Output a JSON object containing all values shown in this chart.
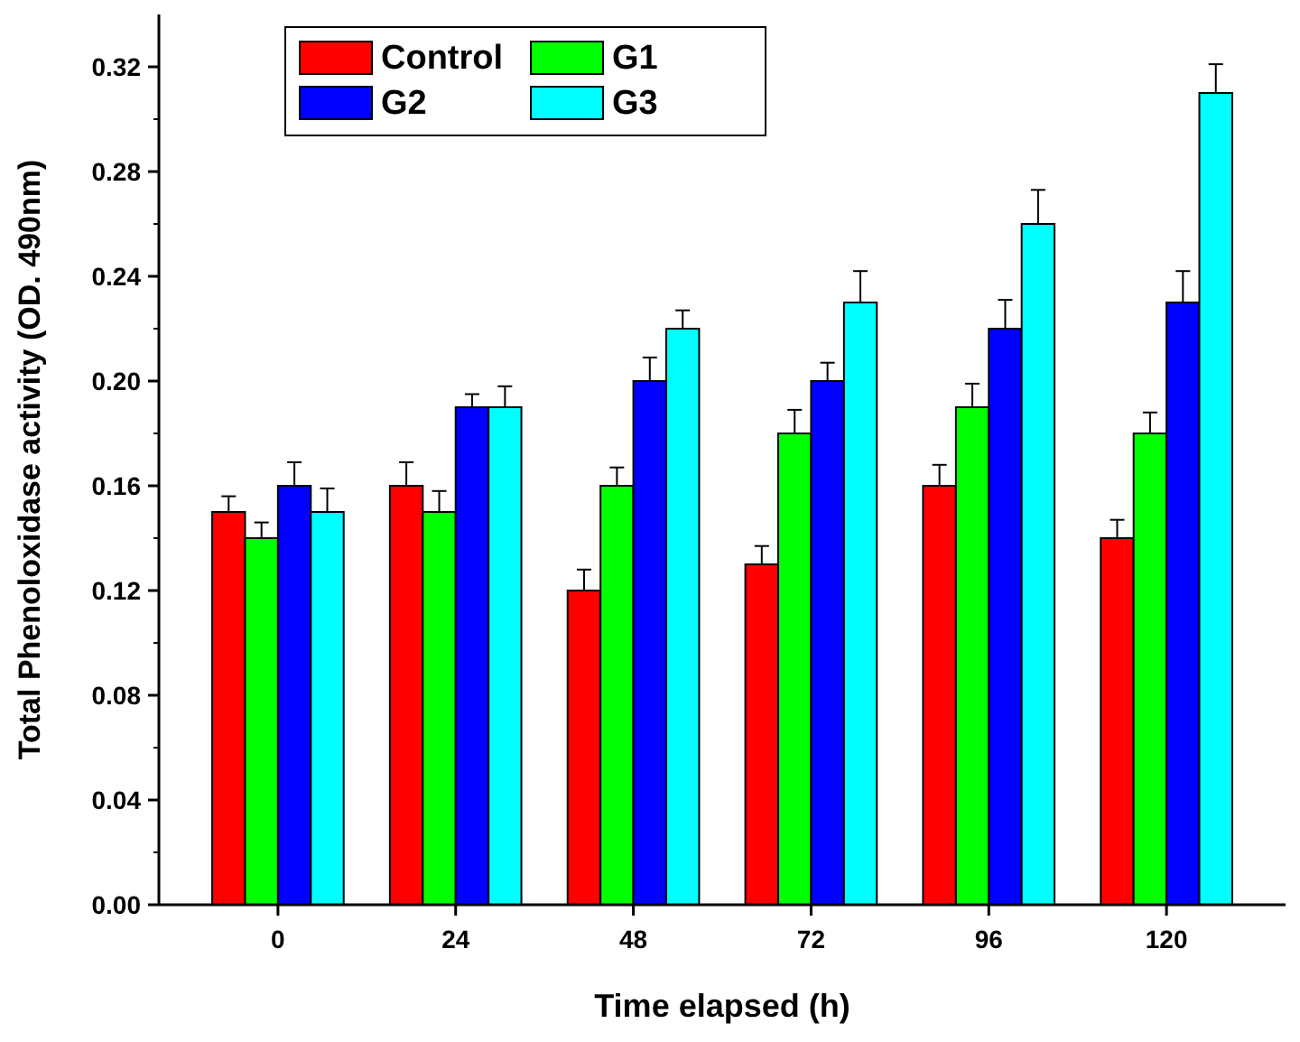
{
  "chart_data": {
    "type": "bar",
    "xlabel": "Time elapsed (h)",
    "ylabel": "Total Phenoloxidase activity (OD. 490nm)",
    "categories": [
      "0",
      "24",
      "48",
      "72",
      "96",
      "120"
    ],
    "series": [
      {
        "name": "Control",
        "color": "#ff0000",
        "values": [
          0.15,
          0.16,
          0.12,
          0.13,
          0.16,
          0.14
        ],
        "errors": [
          [
            0.15,
            0.156
          ],
          [
            0.16,
            0.169
          ],
          [
            0.12,
            0.128
          ],
          [
            0.13,
            0.137
          ],
          [
            0.16,
            0.168
          ],
          [
            0.14,
            0.147
          ]
        ]
      },
      {
        "name": "G1",
        "color": "#00ff00",
        "values": [
          0.14,
          0.15,
          0.16,
          0.18,
          0.19,
          0.18
        ],
        "errors": [
          [
            0.14,
            0.146
          ],
          [
            0.15,
            0.158
          ],
          [
            0.16,
            0.167
          ],
          [
            0.18,
            0.189
          ],
          [
            0.19,
            0.199
          ],
          [
            0.18,
            0.188
          ]
        ]
      },
      {
        "name": "G2",
        "color": "#0000ff",
        "values": [
          0.16,
          0.19,
          0.2,
          0.2,
          0.22,
          0.23
        ],
        "errors": [
          [
            0.16,
            0.169
          ],
          [
            0.19,
            0.195
          ],
          [
            0.2,
            0.209
          ],
          [
            0.2,
            0.207
          ],
          [
            0.22,
            0.231
          ],
          [
            0.23,
            0.242
          ]
        ]
      },
      {
        "name": "G3",
        "color": "#00ffff",
        "values": [
          0.15,
          0.19,
          0.22,
          0.23,
          0.26,
          0.31
        ],
        "errors": [
          [
            0.15,
            0.159
          ],
          [
            0.19,
            0.198
          ],
          [
            0.22,
            0.227
          ],
          [
            0.23,
            0.242
          ],
          [
            0.26,
            0.273
          ],
          [
            0.31,
            0.321
          ]
        ]
      }
    ],
    "ylim": [
      0,
      0.34
    ],
    "yticks": [
      {
        "value": 0,
        "label": "0.00"
      },
      {
        "value": 0.04,
        "label": "0.04"
      },
      {
        "value": 0.08,
        "label": "0.08"
      },
      {
        "value": 0.12,
        "label": "0.12"
      },
      {
        "value": 0.16,
        "label": "0.16"
      },
      {
        "value": 0.2,
        "label": "0.20"
      },
      {
        "value": 0.24,
        "label": "0.24"
      },
      {
        "value": 0.28,
        "label": "0.28"
      },
      {
        "value": 0.32,
        "label": "0.32"
      }
    ],
    "grid": false,
    "legend": "top left"
  }
}
